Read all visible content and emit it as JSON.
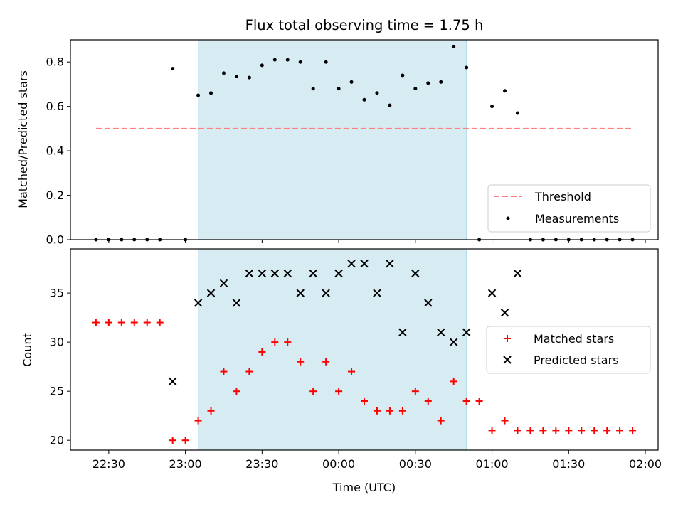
{
  "chart_data": [
    {
      "type": "scatter",
      "title": "Flux total observing time = 1.75 h",
      "ylabel": "Matched/Predicted stars",
      "xlim": [
        "22:15",
        "02:05"
      ],
      "ylim": [
        0,
        0.9
      ],
      "yticks": [
        0.0,
        0.2,
        0.4,
        0.6,
        0.8
      ],
      "ytick_labels": [
        "0.0",
        "0.2",
        "0.4",
        "0.6",
        "0.8"
      ],
      "grid": false,
      "legend": "lower-right",
      "shaded_interval": [
        "23:05",
        "00:50"
      ],
      "series": [
        {
          "name": "Threshold",
          "kind": "dashed-line",
          "color": "#ff7f7f",
          "x": [
            "22:25",
            "01:55"
          ],
          "y": [
            0.5,
            0.5
          ]
        },
        {
          "name": "Measurements",
          "kind": "dot",
          "color": "#000000",
          "x": [
            "22:25",
            "22:30",
            "22:35",
            "22:40",
            "22:45",
            "22:50",
            "22:55",
            "23:00",
            "23:05",
            "23:10",
            "23:15",
            "23:20",
            "23:25",
            "23:30",
            "23:35",
            "23:40",
            "23:45",
            "23:50",
            "23:55",
            "00:00",
            "00:05",
            "00:10",
            "00:15",
            "00:20",
            "00:25",
            "00:30",
            "00:35",
            "00:40",
            "00:45",
            "00:50",
            "00:55",
            "01:00",
            "01:05",
            "01:10",
            "01:15",
            "01:20",
            "01:25",
            "01:30",
            "01:35",
            "01:40",
            "01:45",
            "01:50",
            "01:55"
          ],
          "y": [
            0,
            0,
            0,
            0,
            0,
            0,
            0.77,
            0,
            0.65,
            0.66,
            0.75,
            0.735,
            0.73,
            0.785,
            0.81,
            0.81,
            0.8,
            0.68,
            0.8,
            0.68,
            0.71,
            0.63,
            0.66,
            0.605,
            0.74,
            0.68,
            0.705,
            0.71,
            0.87,
            0.775,
            0,
            0.6,
            0.67,
            0.57,
            0,
            0,
            0,
            0,
            0,
            0,
            0,
            0,
            0
          ]
        }
      ]
    },
    {
      "type": "scatter",
      "xlabel": "Time (UTC)",
      "ylabel": "Count",
      "xlim": [
        "22:15",
        "02:05"
      ],
      "ylim": [
        19,
        39.5
      ],
      "yticks": [
        20,
        25,
        30,
        35
      ],
      "ytick_labels": [
        "20",
        "25",
        "30",
        "35"
      ],
      "xticks": [
        "22:30",
        "23:00",
        "23:30",
        "00:00",
        "00:30",
        "01:00",
        "01:30",
        "02:00"
      ],
      "grid": false,
      "legend": "center-right",
      "shaded_interval": [
        "23:05",
        "00:50"
      ],
      "series": [
        {
          "name": "Matched stars",
          "kind": "plus",
          "color": "#ff0000",
          "x": [
            "22:25",
            "22:30",
            "22:35",
            "22:40",
            "22:45",
            "22:50",
            "22:55",
            "23:00",
            "23:05",
            "23:10",
            "23:15",
            "23:20",
            "23:25",
            "23:30",
            "23:35",
            "23:40",
            "23:45",
            "23:50",
            "23:55",
            "00:00",
            "00:05",
            "00:10",
            "00:15",
            "00:20",
            "00:25",
            "00:30",
            "00:35",
            "00:40",
            "00:45",
            "00:50",
            "00:55",
            "01:00",
            "01:05",
            "01:10",
            "01:15",
            "01:20",
            "01:25",
            "01:30",
            "01:35",
            "01:40",
            "01:45",
            "01:50",
            "01:55"
          ],
          "y": [
            32,
            32,
            32,
            32,
            32,
            32,
            20,
            20,
            22,
            23,
            27,
            25,
            27,
            29,
            30,
            30,
            28,
            25,
            28,
            25,
            27,
            24,
            23,
            23,
            23,
            25,
            24,
            22,
            26,
            24,
            24,
            21,
            22,
            21,
            21,
            21,
            21,
            21,
            21,
            21,
            21,
            21,
            21
          ]
        },
        {
          "name": "Predicted stars",
          "kind": "x",
          "color": "#000000",
          "x": [
            "22:55",
            "23:05",
            "23:10",
            "23:15",
            "23:20",
            "23:25",
            "23:30",
            "23:35",
            "23:40",
            "23:45",
            "23:50",
            "23:55",
            "00:00",
            "00:05",
            "00:10",
            "00:15",
            "00:20",
            "00:25",
            "00:30",
            "00:35",
            "00:40",
            "00:45",
            "00:50",
            "01:00",
            "01:05",
            "01:10"
          ],
          "y": [
            26,
            34,
            35,
            36,
            34,
            37,
            37,
            37,
            37,
            35,
            37,
            35,
            37,
            38,
            38,
            35,
            38,
            31,
            37,
            34,
            31,
            30,
            31,
            35,
            33,
            37
          ]
        }
      ]
    }
  ],
  "colors": {
    "shade": "#add8e6",
    "threshold": "#ff7f7f",
    "matched": "#ff0000",
    "predicted": "#000000",
    "measurement": "#000000"
  }
}
